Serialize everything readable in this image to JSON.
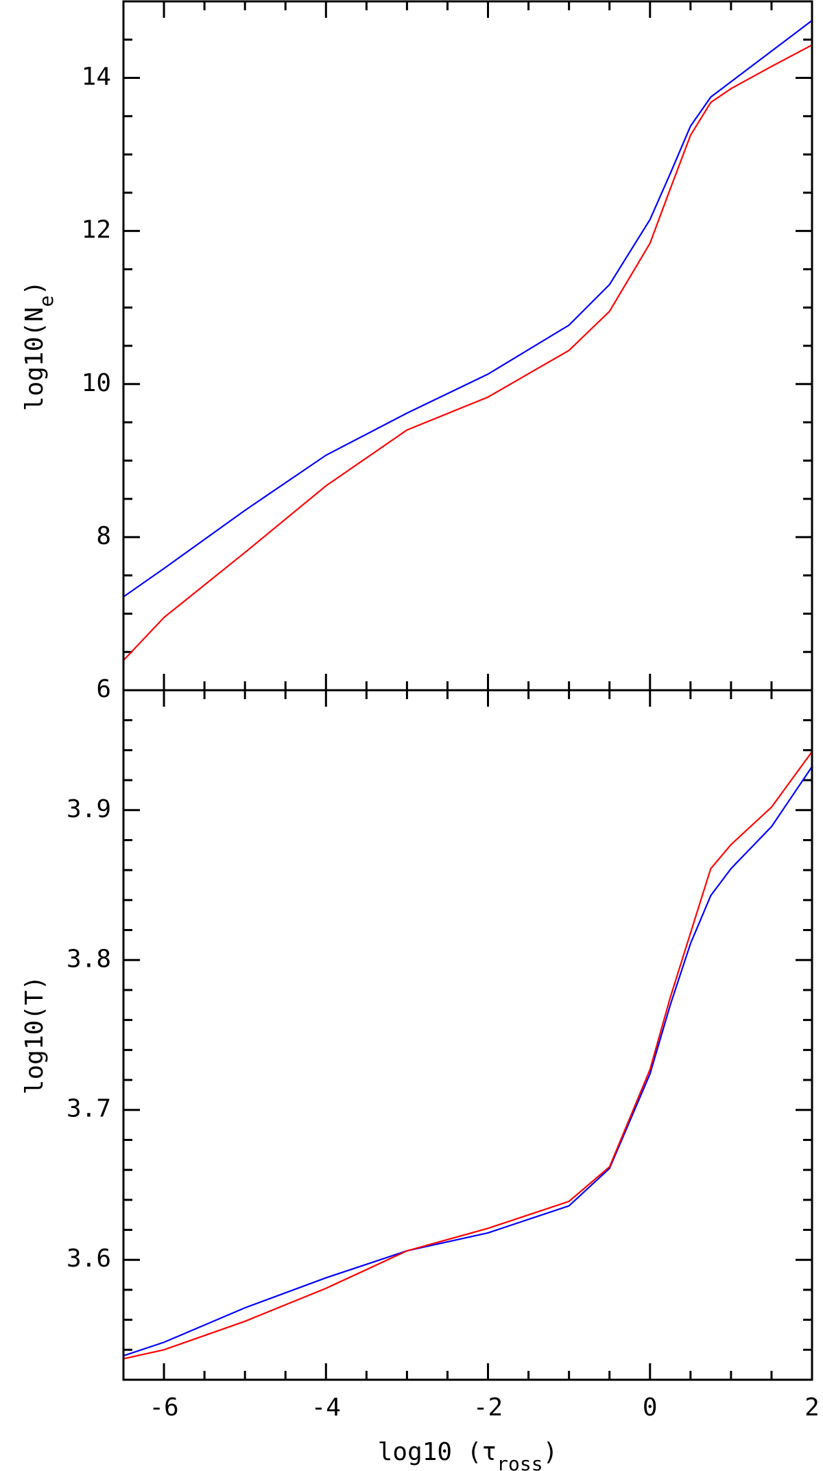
{
  "chart_data": [
    {
      "type": "line",
      "ylabel": [
        "log10(N",
        "e",
        ")"
      ],
      "x": [
        -6.5,
        -6,
        -5,
        -4,
        -3,
        -2,
        -1,
        -0.5,
        0,
        0.25,
        0.5,
        0.75,
        1,
        1.5,
        2
      ],
      "series": [
        {
          "color": "#0000ff",
          "values": [
            7.22,
            7.59,
            8.35,
            9.07,
            9.62,
            10.13,
            10.77,
            11.3,
            12.15,
            12.75,
            13.37,
            13.75,
            13.95,
            14.35,
            14.75
          ]
        },
        {
          "color": "#ff0000",
          "values": [
            6.39,
            6.95,
            7.8,
            8.67,
            9.4,
            9.83,
            10.44,
            10.95,
            11.84,
            12.55,
            13.25,
            13.68,
            13.86,
            14.15,
            14.43
          ]
        }
      ],
      "xlim": [
        -6.5,
        2
      ],
      "xticks": [
        -6,
        -4,
        -2,
        0,
        2
      ],
      "xminor": [
        -5.5,
        -5,
        -4.5,
        -3.5,
        -3,
        -2.5,
        -1.5,
        -1,
        -0.5,
        0.5,
        1,
        1.5
      ],
      "ylim": [
        6,
        15
      ],
      "yticks": [
        6,
        8,
        10,
        12,
        14
      ],
      "yminor": [
        6.5,
        7,
        7.5,
        8.5,
        9,
        9.5,
        10.5,
        11,
        11.5,
        12.5,
        13,
        13.5,
        14.5
      ]
    },
    {
      "type": "line",
      "ylabel": [
        "log10(T)"
      ],
      "xlabel": [
        "log10 (τ",
        "ross",
        ")"
      ],
      "x": [
        -6.5,
        -6,
        -5,
        -4,
        -3,
        -2,
        -1,
        -0.5,
        0,
        0.25,
        0.5,
        0.75,
        1,
        1.5,
        2
      ],
      "series": [
        {
          "color": "#0000ff",
          "values": [
            3.536,
            3.545,
            3.568,
            3.588,
            3.606,
            3.618,
            3.636,
            3.661,
            3.724,
            3.77,
            3.811,
            3.843,
            3.861,
            3.889,
            3.929
          ]
        },
        {
          "color": "#ff0000",
          "values": [
            3.534,
            3.54,
            3.559,
            3.581,
            3.606,
            3.621,
            3.639,
            3.662,
            3.727,
            3.775,
            3.818,
            3.861,
            3.877,
            3.902,
            3.939
          ]
        }
      ],
      "xlim": [
        -6.5,
        2
      ],
      "xticks": [
        -6,
        -4,
        -2,
        0,
        2
      ],
      "xminor": [
        -5.5,
        -5,
        -4.5,
        -3.5,
        -3,
        -2.5,
        -1.5,
        -1,
        -0.5,
        0.5,
        1,
        1.5
      ],
      "ylim": [
        3.52,
        3.98
      ],
      "yticks": [
        3.6,
        3.7,
        3.8,
        3.9
      ],
      "yminor": [
        3.54,
        3.56,
        3.58,
        3.62,
        3.64,
        3.66,
        3.68,
        3.72,
        3.74,
        3.76,
        3.78,
        3.82,
        3.84,
        3.86,
        3.88,
        3.92,
        3.94,
        3.96
      ]
    }
  ]
}
